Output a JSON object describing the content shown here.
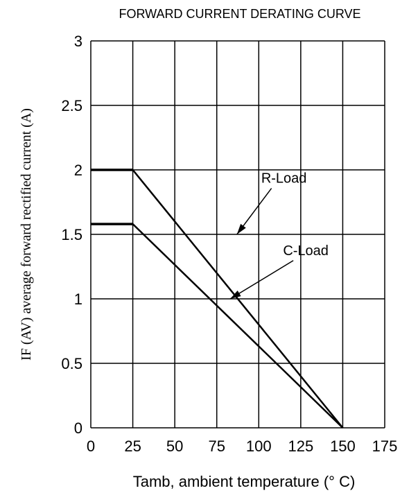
{
  "chart_data": {
    "type": "line",
    "title": "FORWARD CURRENT DERATING CURVE",
    "xlabel": "Tamb, ambient temperature (° C)",
    "ylabel": "IF (AV)  average forward rectified current (A)",
    "xlim": [
      0,
      175
    ],
    "ylim": [
      0,
      3
    ],
    "x_ticks": [
      0,
      25,
      50,
      75,
      100,
      125,
      150,
      175
    ],
    "y_ticks": [
      0,
      0.5,
      1,
      1.5,
      2,
      2.5,
      3
    ],
    "x_tick_labels": [
      "0",
      "25",
      "50",
      "75",
      "100",
      "125",
      "150",
      "175"
    ],
    "y_tick_labels": [
      "0",
      "0.5",
      "1",
      "1.5",
      "2",
      "2.5",
      "3"
    ],
    "grid": true,
    "series": [
      {
        "name": "R-Load",
        "x": [
          0,
          25,
          150
        ],
        "y": [
          2.0,
          2.0,
          0
        ]
      },
      {
        "name": "C-Load",
        "x": [
          0,
          25,
          150
        ],
        "y": [
          1.58,
          1.58,
          0
        ]
      }
    ],
    "annotations": [
      {
        "text": "R-Load",
        "points_to": [
          87,
          1.5
        ],
        "label_at": [
          115,
          1.9
        ]
      },
      {
        "text": "C-Load",
        "points_to": [
          83,
          1.0
        ],
        "label_at": [
          128,
          1.34
        ]
      }
    ],
    "colors": {
      "line": "#000000",
      "grid": "#000000",
      "background": "#ffffff"
    }
  }
}
